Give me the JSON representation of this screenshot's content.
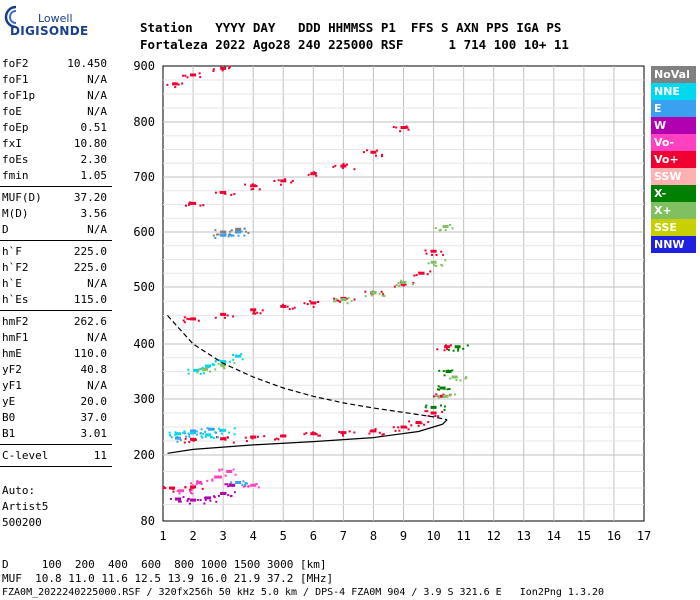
{
  "logo": {
    "line1": "Lowell",
    "line2": "DIGISONDE"
  },
  "header": {
    "line1": "Station   YYYY DAY   DDD HHMMSS P1  FFS S AXN PPS IGA PS",
    "line2": "Fortaleza 2022 Ago28 240 225000 RSF      1 714 100 10+ 11"
  },
  "params": [
    {
      "group": [
        {
          "k": "foF2",
          "v": "10.450"
        },
        {
          "k": "foF1",
          "v": "N/A"
        },
        {
          "k": "foF1p",
          "v": "N/A"
        },
        {
          "k": "foE",
          "v": "N/A"
        },
        {
          "k": "foEp",
          "v": "0.51"
        },
        {
          "k": "fxI",
          "v": "10.80"
        },
        {
          "k": "foEs",
          "v": "2.30"
        },
        {
          "k": "fmin",
          "v": "1.05"
        }
      ]
    },
    {
      "group": [
        {
          "k": "MUF(D)",
          "v": "37.20"
        },
        {
          "k": "M(D)",
          "v": "3.56"
        },
        {
          "k": "D",
          "v": "N/A"
        }
      ]
    },
    {
      "group": [
        {
          "k": "h`F",
          "v": "225.0"
        },
        {
          "k": "h`F2",
          "v": "225.0"
        },
        {
          "k": "h`E",
          "v": "N/A"
        },
        {
          "k": "h`Es",
          "v": "115.0"
        }
      ]
    },
    {
      "group": [
        {
          "k": "hmF2",
          "v": "262.6"
        },
        {
          "k": "hmF1",
          "v": "N/A"
        },
        {
          "k": "hmE",
          "v": "110.0"
        },
        {
          "k": "yF2",
          "v": "40.8"
        },
        {
          "k": "yF1",
          "v": "N/A"
        },
        {
          "k": "yE",
          "v": "20.0"
        },
        {
          "k": "B0",
          "v": "37.0"
        },
        {
          "k": "B1",
          "v": "3.01"
        }
      ]
    },
    {
      "group": [
        {
          "k": "C-level",
          "v": "11"
        }
      ]
    }
  ],
  "auto": {
    "line1": "Auto:",
    "line2": "Artist5",
    "line3": "500200"
  },
  "legend": [
    {
      "label": "NoVal",
      "color": "#808080"
    },
    {
      "label": "NNE",
      "color": "#00d8f0"
    },
    {
      "label": "E",
      "color": "#3aa0f0"
    },
    {
      "label": "W",
      "color": "#b000b0"
    },
    {
      "label": "Vo-",
      "color": "#ff40c0"
    },
    {
      "label": "Vo+",
      "color": "#f00030"
    },
    {
      "label": "SSW",
      "color": "#ffb0b0"
    },
    {
      "label": "X-",
      "color": "#008000"
    },
    {
      "label": "X+",
      "color": "#80c060"
    },
    {
      "label": "SSE",
      "color": "#c8d000"
    },
    {
      "label": "NNW",
      "color": "#2020e0"
    }
  ],
  "footer": {
    "d_line": "D     100  200  400  600  800 1000 1500 3000 [km]",
    "muf_line": "MUF  10.8 11.0 11.6 12.5 13.9 16.0 21.9 37.2 [MHz]",
    "file_line": "FZA0M_2022240225000.RSF / 320fx256h 50 kHz 5.0 km / DPS-4 FZA0M 904 / 3.9 S 321.6 E   Ion2Png 1.3.20"
  },
  "chart_data": {
    "type": "scatter",
    "x_ticks": [
      "1",
      "2",
      "3",
      "4",
      "5",
      "6",
      "7",
      "8",
      "9",
      "10",
      "11",
      "12",
      "13",
      "14",
      "15",
      "16",
      "17"
    ],
    "y_ticks": [
      "80",
      "200",
      "300",
      "400",
      "500",
      "600",
      "700",
      "800",
      "900"
    ],
    "xlim": [
      1,
      17
    ],
    "y_axis": "nonlinear, 80 to 900 km",
    "grid": true,
    "legend_position": "right",
    "series": [
      {
        "name": "Vo+",
        "color": "#f00030",
        "points": [
          [
            2.0,
            228
          ],
          [
            3.0,
            229
          ],
          [
            4.0,
            232
          ],
          [
            5.0,
            234
          ],
          [
            6.0,
            238
          ],
          [
            7.0,
            240
          ],
          [
            8.0,
            243
          ],
          [
            9.0,
            250
          ],
          [
            9.5,
            258
          ],
          [
            10.0,
            275
          ],
          [
            10.3,
            305
          ],
          [
            10.45,
            395
          ],
          [
            2.0,
            444
          ],
          [
            3.0,
            452
          ],
          [
            4.0,
            460
          ],
          [
            5.0,
            466
          ],
          [
            6.0,
            472
          ],
          [
            7.0,
            480
          ],
          [
            8.0,
            490
          ],
          [
            9.0,
            505
          ],
          [
            9.6,
            525
          ],
          [
            10.0,
            565
          ],
          [
            2.0,
            652
          ],
          [
            3.0,
            672
          ],
          [
            4.0,
            684
          ],
          [
            5.0,
            693
          ],
          [
            6.0,
            706
          ],
          [
            7.0,
            720
          ],
          [
            8.0,
            745
          ],
          [
            9.0,
            790
          ],
          [
            1.3,
            140
          ],
          [
            2.0,
            142
          ],
          [
            1.4,
            868
          ],
          [
            2.0,
            884
          ],
          [
            3.0,
            896
          ]
        ]
      },
      {
        "name": "Vo-",
        "color": "#ff40c0",
        "points": [
          [
            1.6,
            135
          ],
          [
            2.2,
            150
          ],
          [
            2.8,
            160
          ],
          [
            3.2,
            170
          ],
          [
            4.0,
            145
          ]
        ]
      },
      {
        "name": "W",
        "color": "#b000b0",
        "points": [
          [
            1.5,
            120
          ],
          [
            2.0,
            118
          ],
          [
            2.5,
            122
          ],
          [
            3.0,
            130
          ],
          [
            3.3,
            145
          ]
        ]
      },
      {
        "name": "NNE",
        "color": "#00d8f0",
        "points": [
          [
            1.5,
            238
          ],
          [
            2.0,
            240
          ],
          [
            2.5,
            236
          ],
          [
            3.0,
            244
          ],
          [
            2.1,
            352
          ],
          [
            2.5,
            360
          ],
          [
            3.0,
            368
          ],
          [
            3.5,
            378
          ]
        ]
      },
      {
        "name": "E",
        "color": "#3aa0f0",
        "points": [
          [
            1.5,
            230
          ],
          [
            2.0,
            243
          ],
          [
            2.6,
            246
          ],
          [
            3.5,
            150
          ],
          [
            3.0,
            594
          ],
          [
            3.5,
            600
          ]
        ]
      },
      {
        "name": "X-",
        "color": "#008000",
        "points": [
          [
            10.0,
            285
          ],
          [
            10.3,
            320
          ],
          [
            10.5,
            350
          ],
          [
            10.8,
            395
          ]
        ]
      },
      {
        "name": "X+",
        "color": "#80c060",
        "points": [
          [
            2.4,
            354
          ],
          [
            3.0,
            362
          ],
          [
            7.0,
            478
          ],
          [
            8.0,
            490
          ],
          [
            9.0,
            508
          ],
          [
            10.0,
            545
          ],
          [
            10.4,
            610
          ],
          [
            10.4,
            305
          ],
          [
            10.7,
            340
          ]
        ]
      },
      {
        "name": "NoVal",
        "color": "#808080",
        "points": [
          [
            3.0,
            600
          ],
          [
            3.5,
            605
          ]
        ]
      }
    ],
    "profile_curves": [
      {
        "style": "solid",
        "points": [
          [
            1.15,
            203
          ],
          [
            2.0,
            210
          ],
          [
            4.0,
            218
          ],
          [
            6.0,
            224
          ],
          [
            8.0,
            231
          ],
          [
            9.5,
            242
          ],
          [
            10.3,
            255
          ],
          [
            10.45,
            263
          ]
        ]
      },
      {
        "style": "dashed",
        "points": [
          [
            1.15,
            450
          ],
          [
            2.0,
            400
          ],
          [
            3.0,
            365
          ],
          [
            4.0,
            340
          ],
          [
            5.0,
            320
          ],
          [
            6.0,
            305
          ],
          [
            7.0,
            293
          ],
          [
            8.0,
            284
          ],
          [
            9.0,
            276
          ],
          [
            10.0,
            268
          ],
          [
            10.45,
            263
          ]
        ]
      }
    ]
  }
}
